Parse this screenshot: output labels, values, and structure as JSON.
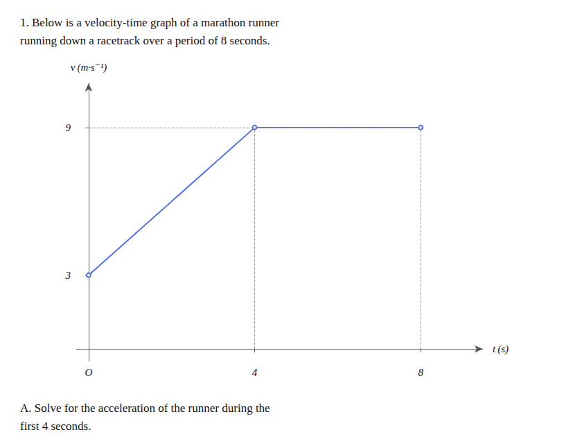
{
  "chart_data": {
    "type": "line",
    "title": "1. Below is a velocity-time graph of a marathon runner\nrunning down a racetrack over a period of 8 seconds.",
    "annotations": [
      "A. Solve for the acceleration of the runner during the\nfirst 4 seconds."
    ],
    "xlabel": "t (s)",
    "ylabel": "v (m·s⁻¹)",
    "x": [
      0,
      4,
      8
    ],
    "values": [
      3,
      9,
      9
    ],
    "xlim": [
      -0.3,
      9.5
    ],
    "ylim": [
      -0.5,
      10.8
    ],
    "xticks": [
      {
        "value": 0,
        "label": "O"
      },
      4,
      8
    ],
    "yticks": [
      3,
      9
    ],
    "grid": false
  }
}
